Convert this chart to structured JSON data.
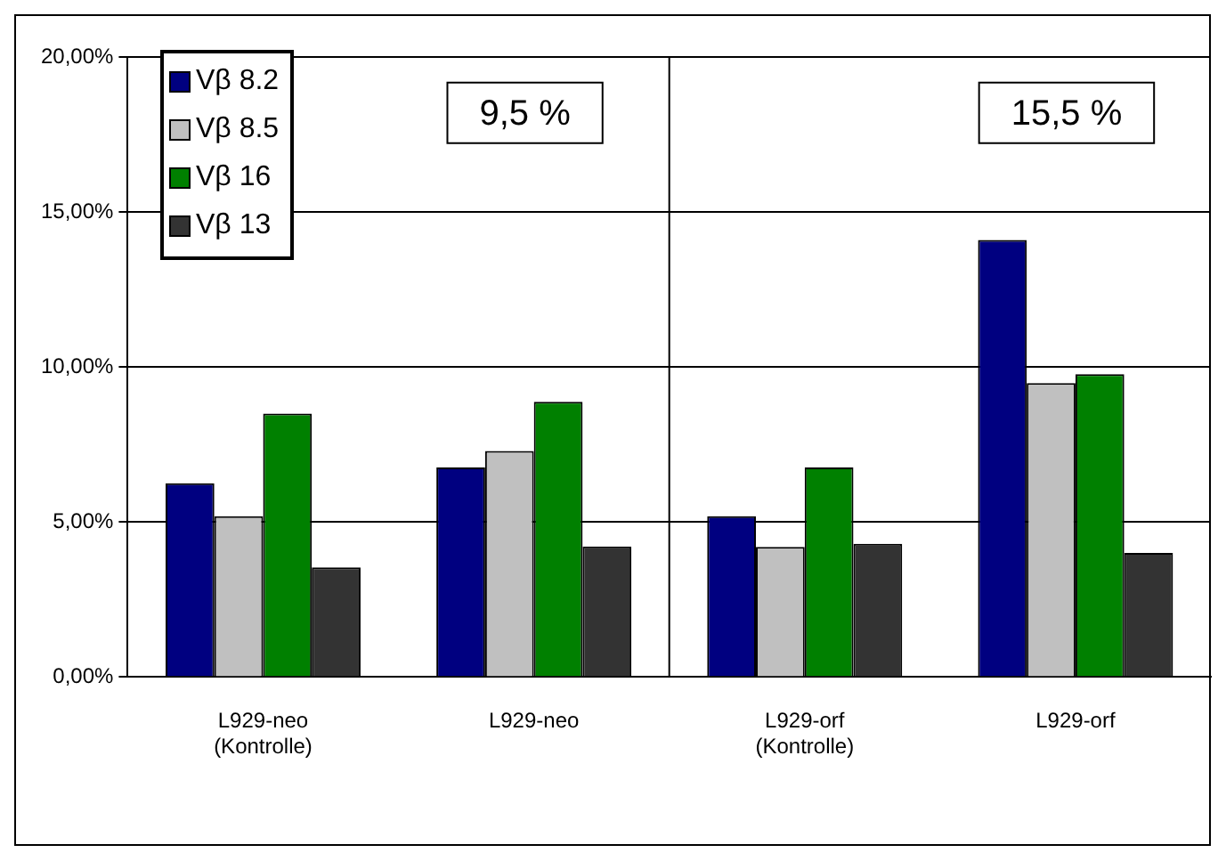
{
  "chart_data": {
    "type": "bar",
    "categories": [
      "L929-neo\n(Kontrolle)",
      "L929-neo",
      "L929-orf\n(Kontrolle)",
      "L929-orf"
    ],
    "series": [
      {
        "name": "Vβ 8.2",
        "color": "#000080",
        "values": [
          6.25,
          6.76,
          5.19,
          14.1
        ]
      },
      {
        "name": "Vβ 8.5",
        "color": "#c0c0c0",
        "values": [
          5.19,
          7.29,
          4.2,
          9.48
        ]
      },
      {
        "name": "Vβ 16",
        "color": "#008000",
        "values": [
          8.5,
          8.88,
          6.76,
          9.77
        ]
      },
      {
        "name": "Vβ 13",
        "color": "#333333",
        "values": [
          3.54,
          4.21,
          4.3,
          4.0
        ]
      }
    ],
    "ylim": [
      0,
      20
    ],
    "yticks": [
      {
        "value": 0,
        "label": "0,00%"
      },
      {
        "value": 5,
        "label": "5,00%"
      },
      {
        "value": 10,
        "label": "10,00%"
      },
      {
        "value": 15,
        "label": "15,00%"
      },
      {
        "value": 20,
        "label": "20,00%"
      }
    ],
    "grid": "y",
    "legend": "top left",
    "annotations": [
      "9,5 %",
      "15,5 %"
    ]
  }
}
